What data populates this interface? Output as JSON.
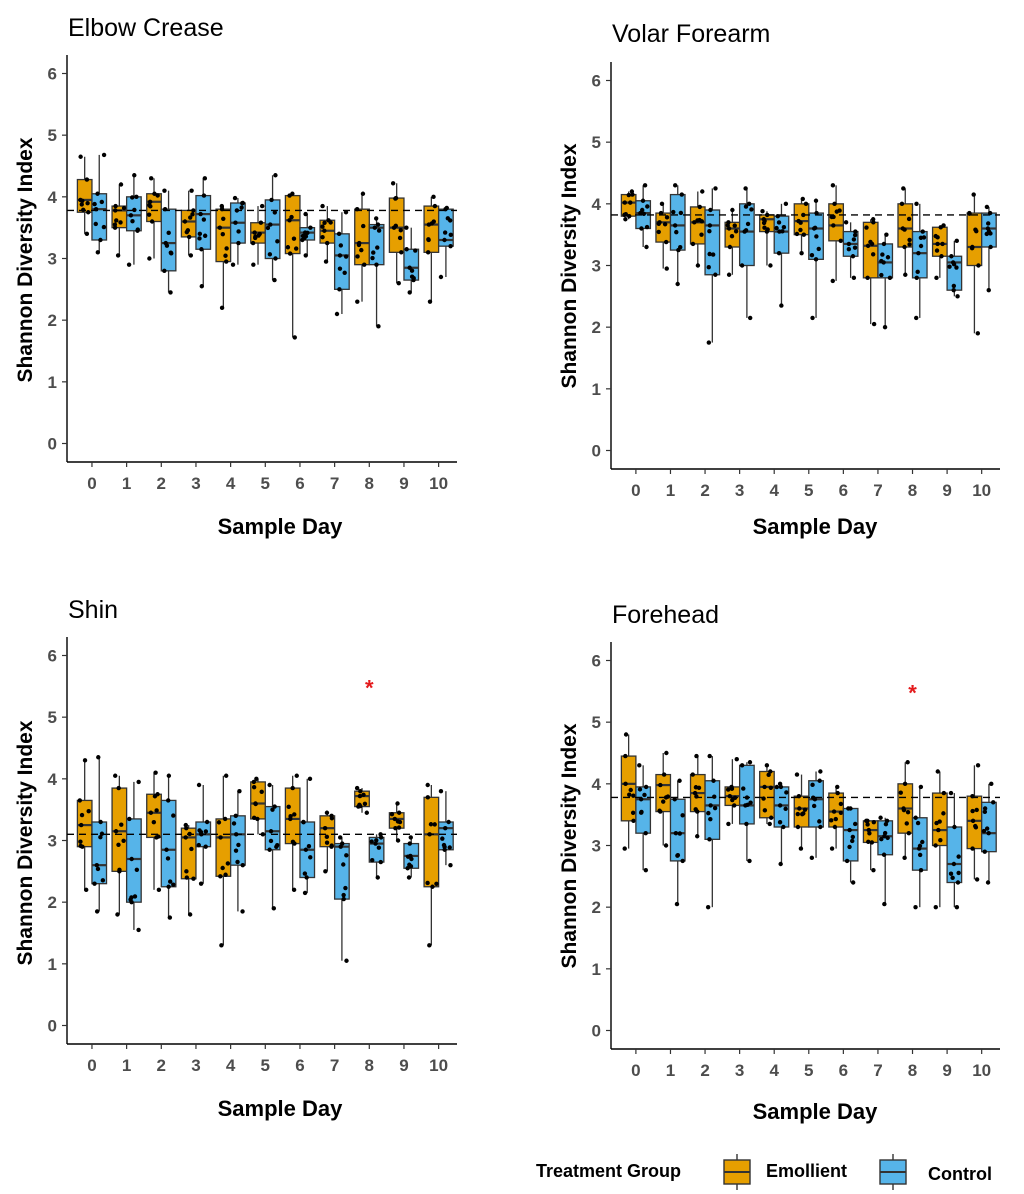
{
  "colors": {
    "emollient": "#E69F00",
    "control": "#56B4E9",
    "significance": "#E41A1C"
  },
  "legend": {
    "title": "Treatment Group",
    "emollient_label": "Emollient",
    "control_label": "Control"
  },
  "chart_data": [
    {
      "type": "boxplot",
      "title": "Elbow Crease",
      "xlabel": "Sample Day",
      "ylabel": "Shannon Diversity Index",
      "categories": [
        "0",
        "1",
        "2",
        "3",
        "4",
        "5",
        "6",
        "7",
        "8",
        "9",
        "10"
      ],
      "yticks": [
        "0",
        "1",
        "2",
        "3",
        "4",
        "5",
        "6"
      ],
      "ylim": [
        -0.3,
        6.3
      ],
      "reference_line": 3.78,
      "significance": [],
      "series": [
        {
          "name": "Emollient",
          "boxes": [
            {
              "q1": 3.75,
              "median": 3.95,
              "q3": 4.28,
              "whislo": 3.4,
              "whishi": 4.65
            },
            {
              "q1": 3.5,
              "median": 3.78,
              "q3": 3.85,
              "whislo": 3.05,
              "whishi": 4.2
            },
            {
              "q1": 3.6,
              "median": 3.92,
              "q3": 4.05,
              "whislo": 3.0,
              "whishi": 4.3
            },
            {
              "q1": 3.35,
              "median": 3.6,
              "q3": 3.78,
              "whislo": 3.05,
              "whishi": 4.1
            },
            {
              "q1": 2.95,
              "median": 3.5,
              "q3": 3.8,
              "whislo": 2.2,
              "whishi": 3.85
            },
            {
              "q1": 3.25,
              "median": 3.42,
              "q3": 3.58,
              "whislo": 2.9,
              "whishi": 3.85
            },
            {
              "q1": 3.08,
              "median": 3.62,
              "q3": 4.02,
              "whislo": 1.72,
              "whishi": 4.05
            },
            {
              "q1": 3.25,
              "median": 3.45,
              "q3": 3.62,
              "whislo": 2.95,
              "whishi": 3.85
            },
            {
              "q1": 2.9,
              "median": 3.25,
              "q3": 3.8,
              "whislo": 2.3,
              "whishi": 4.05
            },
            {
              "q1": 3.1,
              "median": 3.5,
              "q3": 3.98,
              "whislo": 2.6,
              "whishi": 4.22
            },
            {
              "q1": 3.1,
              "median": 3.55,
              "q3": 3.85,
              "whislo": 2.3,
              "whishi": 4.0
            }
          ]
        },
        {
          "name": "Control",
          "boxes": [
            {
              "q1": 3.3,
              "median": 3.8,
              "q3": 4.05,
              "whislo": 3.1,
              "whishi": 4.68
            },
            {
              "q1": 3.45,
              "median": 3.7,
              "q3": 4.0,
              "whislo": 2.9,
              "whishi": 4.35
            },
            {
              "q1": 2.8,
              "median": 3.25,
              "q3": 3.8,
              "whislo": 2.45,
              "whishi": 4.1
            },
            {
              "q1": 3.15,
              "median": 3.72,
              "q3": 4.02,
              "whislo": 2.55,
              "whishi": 4.3
            },
            {
              "q1": 3.25,
              "median": 3.58,
              "q3": 3.9,
              "whislo": 2.9,
              "whishi": 3.98
            },
            {
              "q1": 3.0,
              "median": 3.55,
              "q3": 3.95,
              "whislo": 2.65,
              "whishi": 4.35
            },
            {
              "q1": 3.3,
              "median": 3.42,
              "q3": 3.5,
              "whislo": 3.05,
              "whishi": 3.72
            },
            {
              "q1": 2.5,
              "median": 3.05,
              "q3": 3.4,
              "whislo": 2.1,
              "whishi": 3.75
            },
            {
              "q1": 2.9,
              "median": 3.5,
              "q3": 3.55,
              "whislo": 1.9,
              "whishi": 3.65
            },
            {
              "q1": 2.65,
              "median": 2.85,
              "q3": 3.15,
              "whislo": 2.45,
              "whishi": 3.5
            },
            {
              "q1": 3.2,
              "median": 3.3,
              "q3": 3.8,
              "whislo": 2.7,
              "whishi": 3.82
            }
          ]
        }
      ]
    },
    {
      "type": "boxplot",
      "title": "Volar Forearm",
      "xlabel": "Sample Day",
      "ylabel": "Shannon Diversity Index",
      "categories": [
        "0",
        "1",
        "2",
        "3",
        "4",
        "5",
        "6",
        "7",
        "8",
        "9",
        "10"
      ],
      "yticks": [
        "0",
        "1",
        "2",
        "3",
        "4",
        "5",
        "6"
      ],
      "ylim": [
        -0.3,
        6.3
      ],
      "reference_line": 3.82,
      "significance": [],
      "series": [
        {
          "name": "Emollient",
          "boxes": [
            {
              "q1": 3.8,
              "median": 4.02,
              "q3": 4.15,
              "whislo": 3.75,
              "whishi": 4.2
            },
            {
              "q1": 3.38,
              "median": 3.7,
              "q3": 3.85,
              "whislo": 2.95,
              "whishi": 4.0
            },
            {
              "q1": 3.35,
              "median": 3.7,
              "q3": 3.95,
              "whislo": 3.0,
              "whishi": 4.2
            },
            {
              "q1": 3.3,
              "median": 3.6,
              "q3": 3.7,
              "whislo": 2.85,
              "whishi": 3.9
            },
            {
              "q1": 3.55,
              "median": 3.75,
              "q3": 3.82,
              "whislo": 3.0,
              "whishi": 3.88
            },
            {
              "q1": 3.5,
              "median": 3.72,
              "q3": 4.0,
              "whislo": 3.2,
              "whishi": 4.08
            },
            {
              "q1": 3.4,
              "median": 3.65,
              "q3": 4.0,
              "whislo": 2.75,
              "whishi": 4.3
            },
            {
              "q1": 2.8,
              "median": 3.32,
              "q3": 3.7,
              "whislo": 2.05,
              "whishi": 3.75
            },
            {
              "q1": 3.3,
              "median": 3.6,
              "q3": 4.0,
              "whislo": 2.85,
              "whishi": 4.25
            },
            {
              "q1": 3.15,
              "median": 3.35,
              "q3": 3.62,
              "whislo": 2.8,
              "whishi": 3.65
            },
            {
              "q1": 3.0,
              "median": 3.3,
              "q3": 3.85,
              "whislo": 1.9,
              "whishi": 4.15
            }
          ]
        },
        {
          "name": "Control",
          "boxes": [
            {
              "q1": 3.6,
              "median": 3.85,
              "q3": 4.05,
              "whislo": 3.3,
              "whishi": 4.3
            },
            {
              "q1": 3.25,
              "median": 3.65,
              "q3": 4.15,
              "whislo": 2.7,
              "whishi": 4.3
            },
            {
              "q1": 2.85,
              "median": 3.65,
              "q3": 3.9,
              "whislo": 1.75,
              "whishi": 4.25
            },
            {
              "q1": 3.0,
              "median": 3.55,
              "q3": 4.0,
              "whislo": 2.15,
              "whishi": 4.25
            },
            {
              "q1": 3.2,
              "median": 3.55,
              "q3": 3.8,
              "whislo": 2.35,
              "whishi": 4.0
            },
            {
              "q1": 3.1,
              "median": 3.6,
              "q3": 3.85,
              "whislo": 2.15,
              "whishi": 4.05
            },
            {
              "q1": 3.15,
              "median": 3.35,
              "q3": 3.55,
              "whislo": 2.8,
              "whishi": 3.7
            },
            {
              "q1": 2.8,
              "median": 3.05,
              "q3": 3.35,
              "whislo": 2.0,
              "whishi": 3.5
            },
            {
              "q1": 2.8,
              "median": 3.2,
              "q3": 3.55,
              "whislo": 2.15,
              "whishi": 4.0
            },
            {
              "q1": 2.6,
              "median": 3.05,
              "q3": 3.15,
              "whislo": 2.5,
              "whishi": 3.4
            },
            {
              "q1": 3.3,
              "median": 3.6,
              "q3": 3.85,
              "whislo": 2.6,
              "whishi": 3.95
            }
          ]
        }
      ]
    },
    {
      "type": "boxplot",
      "title": "Shin",
      "xlabel": "Sample Day",
      "ylabel": "Shannon Diversity Index",
      "categories": [
        "0",
        "1",
        "2",
        "3",
        "4",
        "5",
        "6",
        "7",
        "8",
        "9",
        "10"
      ],
      "yticks": [
        "0",
        "1",
        "2",
        "3",
        "4",
        "5",
        "6"
      ],
      "ylim": [
        -0.3,
        6.3
      ],
      "reference_line": 3.1,
      "significance": [
        {
          "day": "8",
          "label": "*",
          "y": 5.55
        }
      ],
      "series": [
        {
          "name": "Emollient",
          "boxes": [
            {
              "q1": 2.9,
              "median": 3.25,
              "q3": 3.65,
              "whislo": 2.2,
              "whishi": 4.3
            },
            {
              "q1": 2.5,
              "median": 3.15,
              "q3": 3.85,
              "whislo": 1.8,
              "whishi": 4.05
            },
            {
              "q1": 3.05,
              "median": 3.45,
              "q3": 3.75,
              "whislo": 2.2,
              "whishi": 4.1
            },
            {
              "q1": 2.38,
              "median": 3.05,
              "q3": 3.2,
              "whislo": 1.8,
              "whishi": 3.25
            },
            {
              "q1": 2.42,
              "median": 3.05,
              "q3": 3.35,
              "whislo": 1.3,
              "whishi": 4.05
            },
            {
              "q1": 3.35,
              "median": 3.6,
              "q3": 3.95,
              "whislo": 3.1,
              "whishi": 4.0
            },
            {
              "q1": 2.95,
              "median": 3.35,
              "q3": 3.85,
              "whislo": 2.2,
              "whishi": 4.05
            },
            {
              "q1": 2.9,
              "median": 3.2,
              "q3": 3.4,
              "whislo": 2.5,
              "whishi": 3.45
            },
            {
              "q1": 3.55,
              "median": 3.72,
              "q3": 3.8,
              "whislo": 3.45,
              "whishi": 3.85
            },
            {
              "q1": 3.2,
              "median": 3.35,
              "q3": 3.45,
              "whislo": 3.0,
              "whishi": 3.6
            },
            {
              "q1": 2.25,
              "median": 3.1,
              "q3": 3.7,
              "whislo": 1.3,
              "whishi": 3.9
            }
          ]
        },
        {
          "name": "Control",
          "boxes": [
            {
              "q1": 2.3,
              "median": 2.6,
              "q3": 3.3,
              "whislo": 1.85,
              "whishi": 4.35
            },
            {
              "q1": 2.0,
              "median": 2.7,
              "q3": 3.35,
              "whislo": 1.55,
              "whishi": 3.95
            },
            {
              "q1": 2.25,
              "median": 2.85,
              "q3": 3.65,
              "whislo": 1.75,
              "whishi": 4.05
            },
            {
              "q1": 2.9,
              "median": 3.1,
              "q3": 3.3,
              "whislo": 2.3,
              "whishi": 3.9
            },
            {
              "q1": 2.6,
              "median": 3.1,
              "q3": 3.4,
              "whislo": 1.85,
              "whishi": 3.8
            },
            {
              "q1": 2.85,
              "median": 3.15,
              "q3": 3.55,
              "whislo": 1.9,
              "whishi": 3.9
            },
            {
              "q1": 2.4,
              "median": 2.85,
              "q3": 3.3,
              "whislo": 2.15,
              "whishi": 4.0
            },
            {
              "q1": 2.05,
              "median": 2.9,
              "q3": 2.95,
              "whislo": 1.05,
              "whishi": 3.05
            },
            {
              "q1": 2.65,
              "median": 2.95,
              "q3": 3.05,
              "whislo": 2.4,
              "whishi": 3.1
            },
            {
              "q1": 2.55,
              "median": 2.75,
              "q3": 2.95,
              "whislo": 2.4,
              "whishi": 3.05
            },
            {
              "q1": 2.85,
              "median": 3.2,
              "q3": 3.3,
              "whislo": 2.6,
              "whishi": 3.8
            }
          ]
        }
      ]
    },
    {
      "type": "boxplot",
      "title": "Forehead",
      "xlabel": "Sample Day",
      "ylabel": "Shannon Diversity Index",
      "categories": [
        "0",
        "1",
        "2",
        "3",
        "4",
        "5",
        "6",
        "7",
        "8",
        "9",
        "10"
      ],
      "yticks": [
        "0",
        "1",
        "2",
        "3",
        "4",
        "5",
        "6"
      ],
      "ylim": [
        -0.3,
        6.3
      ],
      "reference_line": 3.78,
      "significance": [
        {
          "day": "8",
          "label": "*",
          "y": 5.55
        }
      ],
      "series": [
        {
          "name": "Emollient",
          "boxes": [
            {
              "q1": 3.4,
              "median": 4.0,
              "q3": 4.45,
              "whislo": 2.95,
              "whishi": 4.8
            },
            {
              "q1": 3.55,
              "median": 3.98,
              "q3": 4.15,
              "whislo": 3.0,
              "whishi": 4.5
            },
            {
              "q1": 3.55,
              "median": 3.85,
              "q3": 4.15,
              "whislo": 3.15,
              "whishi": 4.45
            },
            {
              "q1": 3.65,
              "median": 3.8,
              "q3": 3.95,
              "whislo": 3.35,
              "whishi": 4.4
            },
            {
              "q1": 3.45,
              "median": 3.95,
              "q3": 4.2,
              "whislo": 3.35,
              "whishi": 4.3
            },
            {
              "q1": 3.3,
              "median": 3.6,
              "q3": 3.8,
              "whislo": 2.95,
              "whishi": 4.15
            },
            {
              "q1": 3.3,
              "median": 3.55,
              "q3": 3.85,
              "whislo": 2.95,
              "whishi": 3.95
            },
            {
              "q1": 3.05,
              "median": 3.25,
              "q3": 3.4,
              "whislo": 2.6,
              "whishi": 3.4
            },
            {
              "q1": 3.2,
              "median": 3.6,
              "q3": 4.0,
              "whislo": 2.8,
              "whishi": 4.35
            },
            {
              "q1": 3.0,
              "median": 3.25,
              "q3": 3.85,
              "whislo": 2.0,
              "whishi": 4.2
            },
            {
              "q1": 2.95,
              "median": 3.4,
              "q3": 3.8,
              "whislo": 2.45,
              "whishi": 4.3
            }
          ]
        },
        {
          "name": "Control",
          "boxes": [
            {
              "q1": 3.2,
              "median": 3.75,
              "q3": 3.95,
              "whislo": 2.6,
              "whishi": 4.3
            },
            {
              "q1": 2.75,
              "median": 3.2,
              "q3": 3.75,
              "whislo": 2.05,
              "whishi": 4.05
            },
            {
              "q1": 3.1,
              "median": 3.65,
              "q3": 4.05,
              "whislo": 2.0,
              "whishi": 4.45
            },
            {
              "q1": 3.35,
              "median": 3.65,
              "q3": 4.3,
              "whislo": 2.75,
              "whishi": 4.35
            },
            {
              "q1": 3.3,
              "median": 3.65,
              "q3": 3.95,
              "whislo": 2.7,
              "whishi": 4.0
            },
            {
              "q1": 3.3,
              "median": 3.75,
              "q3": 4.05,
              "whislo": 2.8,
              "whishi": 4.2
            },
            {
              "q1": 2.75,
              "median": 3.25,
              "q3": 3.6,
              "whislo": 2.4,
              "whishi": 3.6
            },
            {
              "q1": 2.85,
              "median": 3.15,
              "q3": 3.4,
              "whislo": 2.05,
              "whishi": 3.45
            },
            {
              "q1": 2.6,
              "median": 2.95,
              "q3": 3.45,
              "whislo": 2.0,
              "whishi": 3.95
            },
            {
              "q1": 2.4,
              "median": 2.7,
              "q3": 3.3,
              "whislo": 2.0,
              "whishi": 3.85
            },
            {
              "q1": 2.9,
              "median": 3.2,
              "q3": 3.7,
              "whislo": 2.4,
              "whishi": 4.0
            }
          ]
        }
      ]
    }
  ]
}
